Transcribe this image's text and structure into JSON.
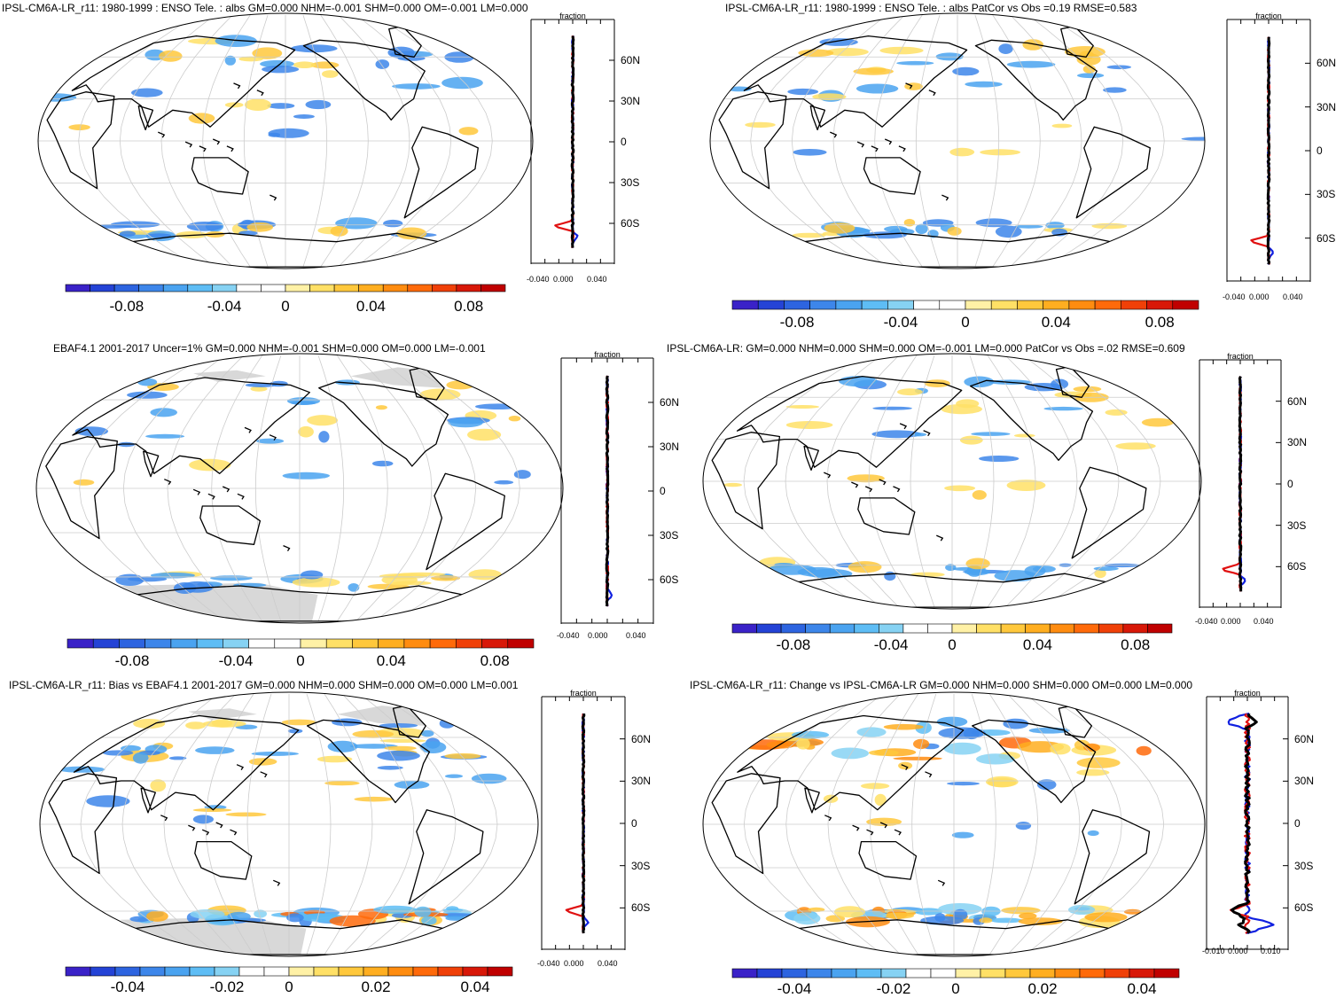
{
  "panels": [
    {
      "title": "IPSL-CM6A-LR_r11: 1980-1999 : ENSO Tele. : albs GM=0.000 NHM=-0.001 SHM=0.000 OM=-0.001 LM=0.000",
      "zonal_title": "fraction",
      "lat_labels": [
        "60N",
        "30N",
        "0",
        "30S",
        "60S"
      ],
      "zonal_x_labels": [
        "-0.040",
        "0.000",
        "0.040"
      ],
      "colorbar_labels": [
        "-0.08",
        "-0.04",
        "0",
        "0.04",
        "0.08"
      ]
    },
    {
      "title": "IPSL-CM6A-LR_r11: 1980-1999 : ENSO Tele. : albs PatCor vs Obs =0.19 RMSE=0.583",
      "zonal_title": "fraction",
      "lat_labels": [
        "60N",
        "30N",
        "0",
        "30S",
        "60S"
      ],
      "zonal_x_labels": [
        "-0.040",
        "0.000",
        "0.040"
      ],
      "colorbar_labels": [
        "-0.08",
        "-0.04",
        "0",
        "0.04",
        "0.08"
      ]
    },
    {
      "title": "EBAF4.1 2001-2017 Uncer=1% GM=0.000 NHM=-0.001 SHM=0.000 OM=0.000 LM=-0.001",
      "zonal_title": "fraction",
      "lat_labels": [
        "60N",
        "30N",
        "0",
        "30S",
        "60S"
      ],
      "zonal_x_labels": [
        "-0.040",
        "0.000",
        "0.040"
      ],
      "colorbar_labels": [
        "-0.08",
        "-0.04",
        "0",
        "0.04",
        "0.08"
      ]
    },
    {
      "title": "IPSL-CM6A-LR: GM=0.000 NHM=0.000 SHM=0.000 OM=-0.001 LM=0.000 PatCor vs Obs =.02 RMSE=0.609",
      "zonal_title": "fraction",
      "lat_labels": [
        "60N",
        "30N",
        "0",
        "30S",
        "60S"
      ],
      "zonal_x_labels": [
        "-0.040",
        "0.000",
        "0.040"
      ],
      "colorbar_labels": [
        "-0.08",
        "-0.04",
        "0",
        "0.04",
        "0.08"
      ]
    },
    {
      "title": "IPSL-CM6A-LR_r11: Bias vs EBAF4.1 2001-2017 GM=0.000 NHM=0.000 SHM=0.000 OM=0.000 LM=0.001",
      "zonal_title": "fraction",
      "lat_labels": [
        "60N",
        "30N",
        "0",
        "30S",
        "60S"
      ],
      "zonal_x_labels": [
        "-0.040",
        "0.000",
        "0.040"
      ],
      "colorbar_labels": [
        "-0.04",
        "-0.02",
        "0",
        "0.02",
        "0.04"
      ]
    },
    {
      "title": "IPSL-CM6A-LR_r11: Change vs IPSL-CM6A-LR GM=0.000 NHM=0.000 SHM=0.000 OM=0.000 LM=0.000",
      "zonal_title": "fraction",
      "lat_labels": [
        "60N",
        "30N",
        "0",
        "30S",
        "60S"
      ],
      "zonal_x_labels": [
        "-0.010",
        "0.000",
        "0.010"
      ],
      "colorbar_labels": [
        "-0.04",
        "-0.02",
        "0",
        "0.02",
        "0.04"
      ]
    }
  ],
  "colorbar_colors": [
    "#3a22c8",
    "#2443d6",
    "#2d64e0",
    "#3d86ea",
    "#4aa3f0",
    "#5ebdf5",
    "#86d2f3",
    "#ffffff",
    "#ffffff",
    "#fff1a6",
    "#ffe066",
    "#ffc83c",
    "#ffae20",
    "#ff8c10",
    "#ff6a0a",
    "#f04008",
    "#d81808",
    "#c00000"
  ],
  "colors": {
    "negative": "#4aa3f0",
    "positive": "#ffd34d",
    "obs_missing": "#d8d8d8",
    "line_black": "#000000",
    "line_red": "#e01010",
    "line_blue": "#1020e0"
  }
}
